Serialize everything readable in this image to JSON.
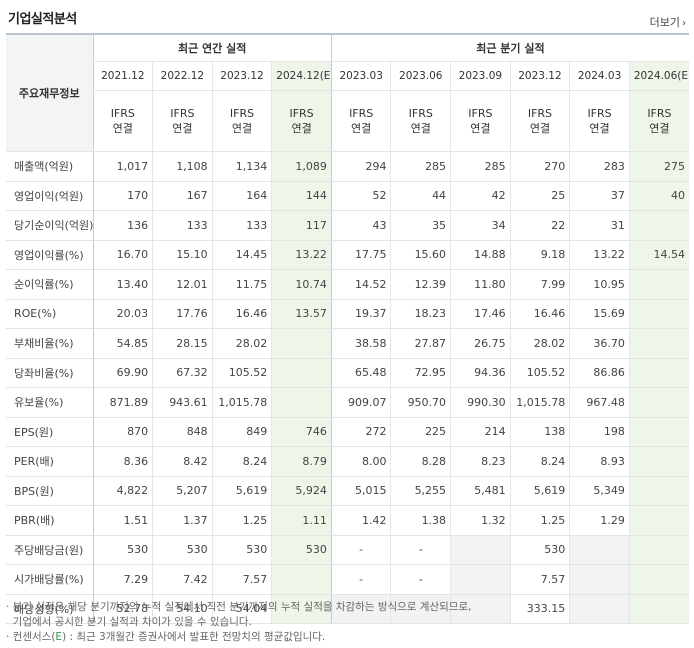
{
  "header": {
    "title": "기업실적분석",
    "more_label": "더보기"
  },
  "table": {
    "corner_label": "주요재무정보",
    "groups": {
      "annual": "최근 연간 실적",
      "quarter": "최근 분기 실적"
    },
    "periods": [
      "2021.12",
      "2022.12",
      "2023.12",
      "2024.12(E)",
      "2023.03",
      "2023.06",
      "2023.09",
      "2023.12",
      "2024.03",
      "2024.06(E)"
    ],
    "basis_top": "IFRS",
    "basis_bottom": "연결",
    "rows": [
      {
        "label": "매출액(억원)",
        "values": [
          "1,017",
          "1,108",
          "1,134",
          "1,089",
          "294",
          "285",
          "285",
          "270",
          "283",
          "275"
        ]
      },
      {
        "label": "영업이익(억원)",
        "values": [
          "170",
          "167",
          "164",
          "144",
          "52",
          "44",
          "42",
          "25",
          "37",
          "40"
        ]
      },
      {
        "label": "당기순이익(억원)",
        "values": [
          "136",
          "133",
          "133",
          "117",
          "43",
          "35",
          "34",
          "22",
          "31",
          ""
        ]
      },
      {
        "label": "영업이익률(%)",
        "values": [
          "16.70",
          "15.10",
          "14.45",
          "13.22",
          "17.75",
          "15.60",
          "14.88",
          "9.18",
          "13.22",
          "14.54"
        ]
      },
      {
        "label": "순이익률(%)",
        "values": [
          "13.40",
          "12.01",
          "11.75",
          "10.74",
          "14.52",
          "12.39",
          "11.80",
          "7.99",
          "10.95",
          ""
        ]
      },
      {
        "label": "ROE(%)",
        "values": [
          "20.03",
          "17.76",
          "16.46",
          "13.57",
          "19.37",
          "18.23",
          "17.46",
          "16.46",
          "15.69",
          ""
        ]
      },
      {
        "label": "부채비율(%)",
        "values": [
          "54.85",
          "28.15",
          "28.02",
          "",
          "38.58",
          "27.87",
          "26.75",
          "28.02",
          "36.70",
          ""
        ]
      },
      {
        "label": "당좌비율(%)",
        "values": [
          "69.90",
          "67.32",
          "105.52",
          "",
          "65.48",
          "72.95",
          "94.36",
          "105.52",
          "86.86",
          ""
        ]
      },
      {
        "label": "유보율(%)",
        "values": [
          "871.89",
          "943.61",
          "1,015.78",
          "",
          "909.07",
          "950.70",
          "990.30",
          "1,015.78",
          "967.48",
          ""
        ]
      },
      {
        "label": "EPS(원)",
        "values": [
          "870",
          "848",
          "849",
          "746",
          "272",
          "225",
          "214",
          "138",
          "198",
          ""
        ]
      },
      {
        "label": "PER(배)",
        "values": [
          "8.36",
          "8.42",
          "8.24",
          "8.79",
          "8.00",
          "8.28",
          "8.23",
          "8.24",
          "8.93",
          ""
        ]
      },
      {
        "label": "BPS(원)",
        "values": [
          "4,822",
          "5,207",
          "5,619",
          "5,924",
          "5,015",
          "5,255",
          "5,481",
          "5,619",
          "5,349",
          ""
        ]
      },
      {
        "label": "PBR(배)",
        "values": [
          "1.51",
          "1.37",
          "1.25",
          "1.11",
          "1.42",
          "1.38",
          "1.32",
          "1.25",
          "1.29",
          ""
        ]
      },
      {
        "label": "주당배당금(원)",
        "values": [
          "530",
          "530",
          "530",
          "530",
          "-",
          "-",
          "",
          "530",
          "",
          ""
        ]
      },
      {
        "label": "시가배당률(%)",
        "values": [
          "7.29",
          "7.42",
          "7.57",
          "",
          "-",
          "-",
          "",
          "7.57",
          "",
          ""
        ]
      },
      {
        "label": "배당성향(%)",
        "values": [
          "52.78",
          "54.10",
          "54.04",
          "",
          "",
          "",
          "",
          "333.15",
          "",
          ""
        ]
      }
    ]
  },
  "notes": {
    "line1": "· 분기 실적은 해당 분기까지의 누적 실적에서 직전 분기까지의 누적 실적을 차감하는 방식으로 계산되므로,",
    "line2": "  기업에서 공시한 분기 실적과 차이가 있을 수 있습니다.",
    "line3_prefix": "· 컨센서스(",
    "line3_e": "E",
    "line3_suffix": ") : 최근 3개월간 증권사에서 발표한 전망치의 평균값입니다."
  }
}
